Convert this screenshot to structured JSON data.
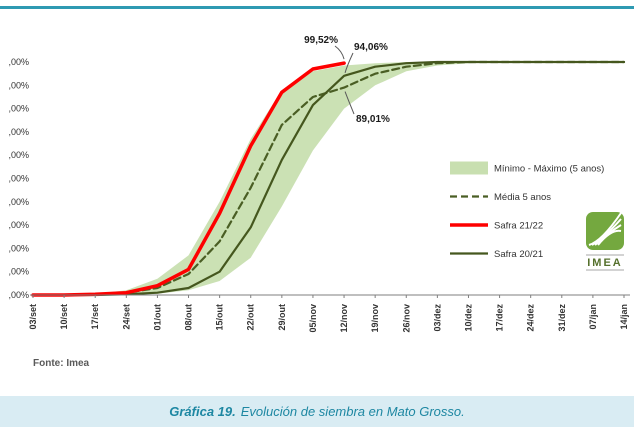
{
  "colors": {
    "accent_rule": "#2e9ab2",
    "caption_bg": "#d9ecf3",
    "caption_text": "#1d87a2",
    "band": "#c8dfb0",
    "media_line": "#4a5e24",
    "safra2122_line": "#fe0000",
    "safra2021_line": "#45571e",
    "axis_text": "#333333",
    "axis_line": "#7f7f7f",
    "annotation_text": "#1a1a1a",
    "leader_line": "#595959",
    "source_text": "#595959",
    "logo_green": "#74a83f",
    "logo_text": "#55702c"
  },
  "source": "Fonte: Imea",
  "logo": {
    "text": "IMEA"
  },
  "caption": {
    "label": "Gráfica 19.",
    "text": "Evolución de siembra en Mato Grosso."
  },
  "chart_data": {
    "type": "line",
    "title": "",
    "xlabel": "",
    "ylabel": "",
    "grid": false,
    "ylim": [
      0,
      100
    ],
    "ytick_values": [
      0,
      10,
      20,
      30,
      40,
      50,
      60,
      70,
      80,
      90,
      100
    ],
    "ytick_label": ",00%",
    "x": [
      "03/set",
      "10/set",
      "17/set",
      "24/set",
      "01/out",
      "08/out",
      "15/out",
      "22/out",
      "29/out",
      "05/nov",
      "12/nov",
      "19/nov",
      "26/nov",
      "03/dez",
      "10/dez",
      "17/dez",
      "24/dez",
      "31/dez",
      "07/jan",
      "14/jan"
    ],
    "series": [
      {
        "name": "Mínimo - Máximo (5 anos)",
        "type": "band",
        "color": "#c8dfb0",
        "max": [
          0,
          0,
          0.5,
          2,
          7,
          17,
          40,
          67,
          88,
          96,
          98.5,
          99.5,
          100,
          100,
          100,
          100,
          100,
          100,
          100,
          100
        ],
        "min": [
          0,
          0,
          0,
          0.2,
          0.5,
          2,
          6,
          16,
          38,
          62,
          80,
          90,
          96,
          98.5,
          99.5,
          100,
          100,
          100,
          100,
          100
        ]
      },
      {
        "name": "Média 5 anos",
        "type": "line",
        "style": "dashed",
        "color": "#4a5e24",
        "values": [
          0,
          0,
          0.2,
          1,
          3,
          9,
          23,
          46,
          73,
          85,
          89.01,
          95,
          98,
          99.5,
          100,
          100,
          100,
          100,
          100,
          100
        ]
      },
      {
        "name": "Safra 21/22",
        "type": "line",
        "style": "solid-thick",
        "color": "#fe0000",
        "values": [
          0,
          0,
          0.3,
          1,
          4,
          11,
          35,
          64,
          87,
          97,
          99.52,
          null,
          null,
          null,
          null,
          null,
          null,
          null,
          null,
          null
        ]
      },
      {
        "name": "Safra 20/21",
        "type": "line",
        "style": "solid",
        "color": "#45571e",
        "values": [
          0,
          0,
          0,
          0.3,
          1,
          3,
          10,
          29,
          58,
          81.5,
          94.06,
          98,
          99.5,
          100,
          100,
          100,
          100,
          100,
          100,
          100
        ]
      }
    ],
    "legend": {
      "position": "center-right",
      "items": [
        "Mínimo - Máximo (5 anos)",
        "Média 5 anos",
        "Safra 21/22",
        "Safra 20/21"
      ]
    },
    "annotations": [
      {
        "text": "99,52%",
        "series": "Safra 21/22",
        "x": "12/nov",
        "value": 99.52
      },
      {
        "text": "94,06%",
        "series": "Safra 20/21",
        "x": "12/nov",
        "value": 94.06
      },
      {
        "text": "89,01%",
        "series": "Média 5 anos",
        "x": "12/nov",
        "value": 89.01
      }
    ]
  }
}
